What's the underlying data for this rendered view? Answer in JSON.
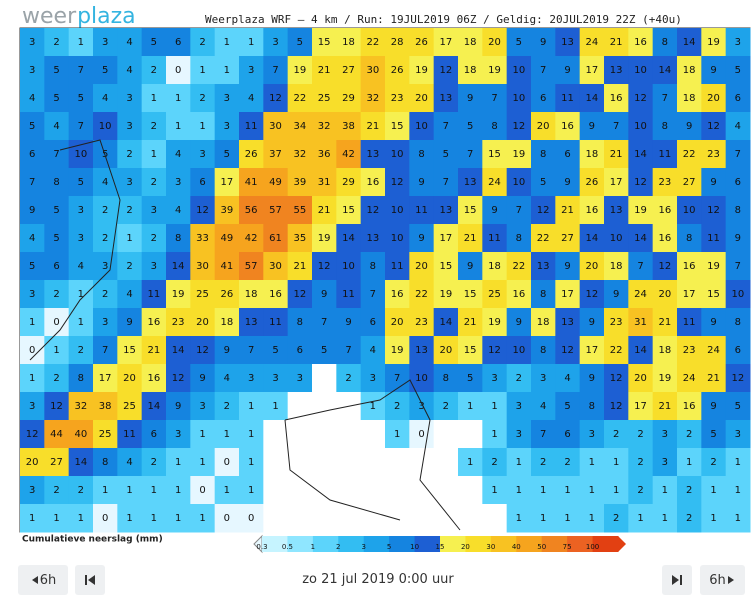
{
  "header": {
    "logo_weer": "weer",
    "logo_plaza": "plaza",
    "title": "Weerplaza WRF – 4 km / Run: 19JUL2019 06Z / Geldig: 20JUL2019 22Z (+40u)"
  },
  "map": {
    "rows": [
      [
        3,
        2,
        1,
        3,
        4,
        5,
        6,
        2,
        1,
        1,
        3,
        5,
        15,
        18,
        22,
        28,
        26,
        17,
        18,
        20,
        5,
        9,
        13,
        24,
        21,
        16,
        8,
        14,
        19,
        3
      ],
      [
        3,
        5,
        7,
        5,
        4,
        2,
        0,
        1,
        1,
        3,
        7,
        19,
        21,
        27,
        30,
        26,
        19,
        12,
        18,
        19,
        10,
        7,
        9,
        17,
        13,
        10,
        14,
        18,
        9,
        5
      ],
      [
        4,
        5,
        5,
        4,
        3,
        1,
        1,
        2,
        3,
        4,
        12,
        22,
        25,
        29,
        32,
        23,
        20,
        13,
        9,
        7,
        10,
        6,
        11,
        14,
        16,
        12,
        7,
        18,
        20,
        6
      ],
      [
        5,
        4,
        7,
        10,
        3,
        2,
        1,
        1,
        3,
        11,
        30,
        34,
        32,
        38,
        21,
        15,
        10,
        7,
        5,
        8,
        12,
        20,
        16,
        9,
        7,
        10,
        8,
        9,
        12,
        4
      ],
      [
        6,
        7,
        10,
        5,
        2,
        1,
        4,
        3,
        5,
        26,
        37,
        32,
        36,
        42,
        13,
        10,
        8,
        5,
        7,
        15,
        19,
        8,
        6,
        18,
        21,
        14,
        11,
        22,
        23,
        7
      ],
      [
        7,
        8,
        5,
        4,
        3,
        2,
        3,
        6,
        17,
        41,
        49,
        39,
        31,
        29,
        16,
        12,
        9,
        7,
        13,
        24,
        10,
        5,
        9,
        26,
        17,
        12,
        23,
        27,
        9,
        6
      ],
      [
        9,
        5,
        3,
        2,
        2,
        3,
        4,
        12,
        39,
        56,
        57,
        55,
        21,
        15,
        12,
        10,
        11,
        13,
        15,
        9,
        7,
        12,
        21,
        16,
        13,
        19,
        16,
        10,
        12,
        8
      ],
      [
        4,
        5,
        3,
        2,
        1,
        2,
        8,
        33,
        49,
        42,
        61,
        35,
        19,
        14,
        13,
        10,
        9,
        17,
        21,
        11,
        8,
        22,
        27,
        14,
        10,
        14,
        16,
        8,
        11,
        9
      ],
      [
        5,
        6,
        4,
        3,
        2,
        3,
        14,
        30,
        41,
        57,
        30,
        21,
        12,
        10,
        8,
        11,
        20,
        15,
        9,
        18,
        22,
        13,
        9,
        20,
        18,
        7,
        12,
        16,
        19,
        7
      ],
      [
        3,
        2,
        1,
        2,
        4,
        11,
        19,
        25,
        26,
        18,
        16,
        12,
        9,
        11,
        7,
        16,
        22,
        19,
        15,
        25,
        16,
        8,
        17,
        12,
        9,
        24,
        20,
        17,
        15,
        10
      ],
      [
        1,
        0,
        1,
        3,
        9,
        16,
        23,
        20,
        18,
        13,
        11,
        8,
        7,
        9,
        6,
        20,
        23,
        14,
        21,
        19,
        9,
        18,
        13,
        9,
        23,
        31,
        21,
        11,
        9,
        8
      ],
      [
        0,
        1,
        2,
        7,
        15,
        21,
        14,
        12,
        9,
        7,
        5,
        6,
        5,
        7,
        4,
        19,
        13,
        20,
        15,
        12,
        10,
        8,
        12,
        17,
        22,
        14,
        18,
        23,
        24,
        6
      ],
      [
        1,
        2,
        8,
        17,
        20,
        16,
        12,
        9,
        4,
        3,
        3,
        3,
        null,
        2,
        3,
        7,
        10,
        8,
        5,
        3,
        2,
        3,
        4,
        9,
        12,
        20,
        19,
        24,
        21,
        12
      ],
      [
        3,
        12,
        32,
        38,
        25,
        14,
        9,
        3,
        2,
        1,
        1,
        null,
        null,
        null,
        1,
        2,
        3,
        2,
        1,
        1,
        3,
        4,
        5,
        8,
        12,
        17,
        21,
        16,
        9,
        5
      ],
      [
        12,
        44,
        40,
        25,
        11,
        6,
        3,
        1,
        1,
        1,
        null,
        null,
        null,
        null,
        null,
        1,
        0,
        null,
        null,
        1,
        3,
        7,
        6,
        3,
        2,
        2,
        3,
        2,
        5,
        3
      ],
      [
        20,
        27,
        14,
        8,
        4,
        2,
        1,
        1,
        0,
        1,
        null,
        null,
        null,
        null,
        null,
        null,
        null,
        null,
        1,
        2,
        1,
        2,
        2,
        1,
        1,
        2,
        3,
        1,
        2,
        1
      ],
      [
        3,
        2,
        2,
        1,
        1,
        1,
        1,
        0,
        1,
        1,
        null,
        null,
        null,
        null,
        null,
        null,
        null,
        null,
        null,
        1,
        1,
        1,
        1,
        1,
        1,
        2,
        1,
        2,
        1,
        1
      ],
      [
        1,
        1,
        1,
        0,
        1,
        1,
        1,
        1,
        0,
        0,
        null,
        null,
        null,
        null,
        null,
        null,
        null,
        null,
        null,
        null,
        1,
        1,
        1,
        1,
        2,
        1,
        1,
        2,
        1,
        1
      ]
    ]
  },
  "legend": {
    "label": "Cumulatieve neerslag (mm)",
    "values": [
      0.3,
      0.5,
      1,
      2,
      3,
      5,
      10,
      15,
      20,
      30,
      40,
      50,
      75,
      100
    ],
    "colors": [
      "#c6f4ff",
      "#8fe6ff",
      "#5cd4fb",
      "#33bdf2",
      "#1ea3ea",
      "#1584e0",
      "#1d5fd3",
      "#f6f050",
      "#f8de2a",
      "#f8c222",
      "#f6a41e",
      "#f08420",
      "#ec6222",
      "#e24012"
    ]
  },
  "nav": {
    "prev_step": "6h",
    "next_step": "6h",
    "date": "zo 21 jul 2019 0:00 uur"
  }
}
